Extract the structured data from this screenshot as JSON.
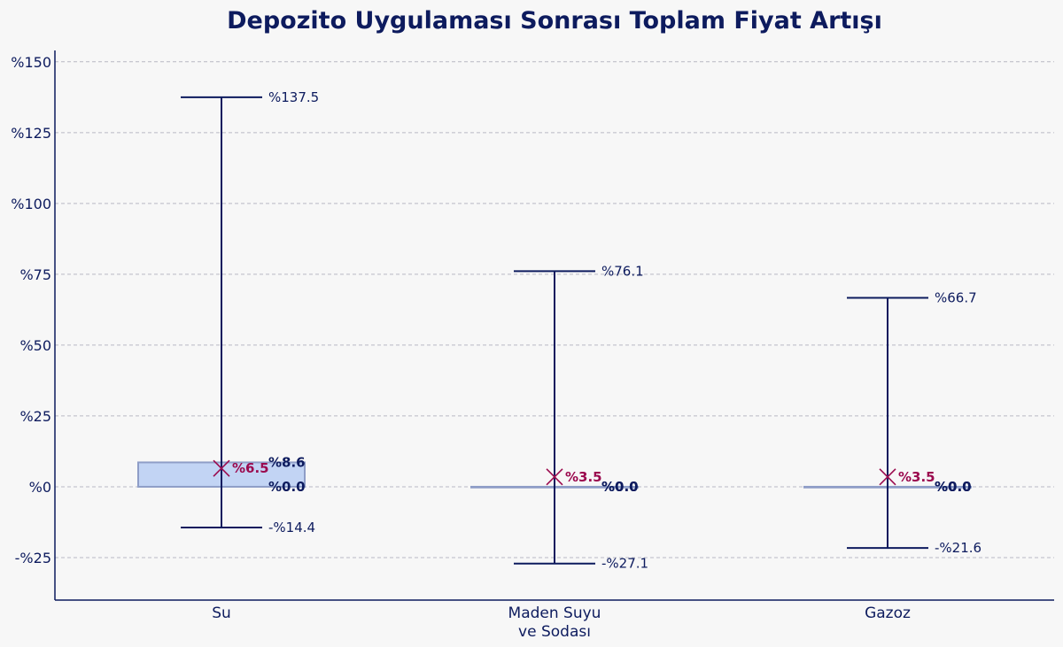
{
  "chart_data": {
    "type": "box",
    "title": "Depozito Uygulaması Sonrası Toplam Fiyat Artışı",
    "xlabel": "",
    "ylabel": "",
    "ylim": [
      -40,
      154
    ],
    "yticks": [
      -25,
      0,
      25,
      50,
      75,
      100,
      125,
      150
    ],
    "ytick_labels": [
      "-%25",
      "%0",
      "%25",
      "%50",
      "%75",
      "%100",
      "%125",
      "%150"
    ],
    "grid": true,
    "categories": [
      {
        "name_lines": [
          "Su"
        ],
        "min": -14.4,
        "q1": 0.0,
        "q3": 8.6,
        "max": 137.5,
        "mean": 6.5,
        "labels": {
          "min": "-%14.4",
          "q1": "%0.0",
          "q3": "%8.6",
          "max": "%137.5",
          "mean": "%6.5"
        }
      },
      {
        "name_lines": [
          "Maden Suyu",
          "ve Sodası"
        ],
        "min": -27.1,
        "q1": 0.0,
        "q3": 0.0,
        "max": 76.1,
        "mean": 3.5,
        "labels": {
          "min": "-%27.1",
          "q1": "%0.0",
          "q3": "%0.0",
          "max": "%76.1",
          "mean": "%3.5"
        }
      },
      {
        "name_lines": [
          "Gazoz"
        ],
        "min": -21.6,
        "q1": 0.0,
        "q3": 0.0,
        "max": 66.7,
        "mean": 3.5,
        "labels": {
          "min": "-%21.6",
          "q1": "%0.0",
          "q3": "%0.0",
          "max": "%66.7",
          "mean": "%3.5"
        }
      }
    ],
    "colors": {
      "box_fill": "#c2d4f4",
      "box_stroke": "#8e9dc7",
      "whisker": "#0d1b5e",
      "mean_marker": "#9b0a4e",
      "grid": "#b8b8c4",
      "axis": "#0d1b5e"
    }
  }
}
